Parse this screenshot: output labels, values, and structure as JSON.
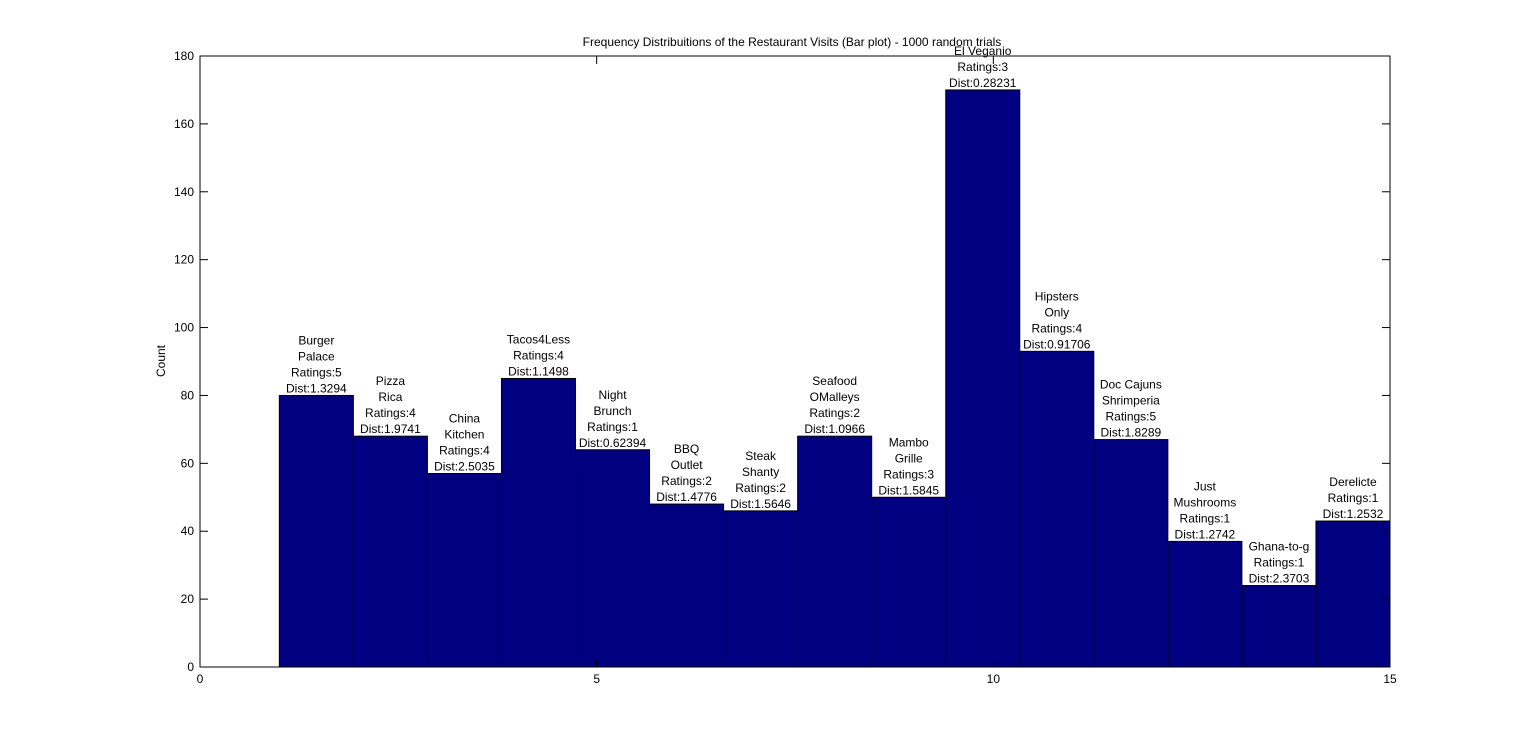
{
  "chart_data": {
    "type": "bar",
    "title": "Frequency Distribuitions of the Restaurant Visits (Bar plot) - 1000 random trials",
    "xlabel": "",
    "ylabel": "Count",
    "xlim": [
      0,
      15
    ],
    "ylim": [
      0,
      180
    ],
    "xticks": [
      0,
      5,
      10,
      15
    ],
    "yticks": [
      0,
      20,
      40,
      60,
      80,
      100,
      120,
      140,
      160,
      180
    ],
    "bar_color": "#000080",
    "grid": false,
    "bars": [
      {
        "name": "Burger Palace",
        "label_lines": [
          "Burger",
          "Palace",
          "Ratings:5",
          "Dist:1.3294"
        ],
        "value": 80
      },
      {
        "name": "Pizza Rica",
        "label_lines": [
          "Pizza",
          "Rica",
          "Ratings:4",
          "Dist:1.9741"
        ],
        "value": 68
      },
      {
        "name": "China Kitchen",
        "label_lines": [
          "China",
          "Kitchen",
          "Ratings:4",
          "Dist:2.5035"
        ],
        "value": 57
      },
      {
        "name": "Tacos4Less",
        "label_lines": [
          "Tacos4Less",
          "Ratings:4",
          "Dist:1.1498"
        ],
        "value": 85
      },
      {
        "name": "Night Brunch",
        "label_lines": [
          "Night",
          "Brunch",
          "Ratings:1",
          "Dist:0.62394"
        ],
        "value": 64
      },
      {
        "name": "BBQ Outlet",
        "label_lines": [
          "BBQ",
          "Outlet",
          "Ratings:2",
          "Dist:1.4776"
        ],
        "value": 48
      },
      {
        "name": "Steak Shanty",
        "label_lines": [
          "Steak",
          "Shanty",
          "Ratings:2",
          "Dist:1.5646"
        ],
        "value": 46
      },
      {
        "name": "Seafood OMalleys",
        "label_lines": [
          "Seafood",
          "OMalleys",
          "Ratings:2",
          "Dist:1.0966"
        ],
        "value": 68
      },
      {
        "name": "Mambo Grille",
        "label_lines": [
          "Mambo",
          "Grille",
          "Ratings:3",
          "Dist:1.5845"
        ],
        "value": 50
      },
      {
        "name": "El Veganio",
        "label_lines": [
          "El Veganio",
          "Ratings:3",
          "Dist:0.28231"
        ],
        "value": 170
      },
      {
        "name": "Hipsters Only",
        "label_lines": [
          "Hipsters",
          "Only",
          "Ratings:4",
          "Dist:0.91706"
        ],
        "value": 93
      },
      {
        "name": "Doc Cajuns Shrimperia",
        "label_lines": [
          "Doc Cajuns",
          "Shrimperia",
          "Ratings:5",
          "Dist:1.8289"
        ],
        "value": 67
      },
      {
        "name": "Just Mushrooms",
        "label_lines": [
          "Just",
          "Mushrooms",
          "Ratings:1",
          "Dist:1.2742"
        ],
        "value": 37
      },
      {
        "name": "Ghana-to-g",
        "label_lines": [
          "Ghana-to-g",
          "Ratings:1",
          "Dist:2.3703"
        ],
        "value": 24
      },
      {
        "name": "Derelicte",
        "label_lines": [
          "Derelicte",
          "Ratings:1",
          "Dist:1.2532"
        ],
        "value": 43
      }
    ]
  }
}
